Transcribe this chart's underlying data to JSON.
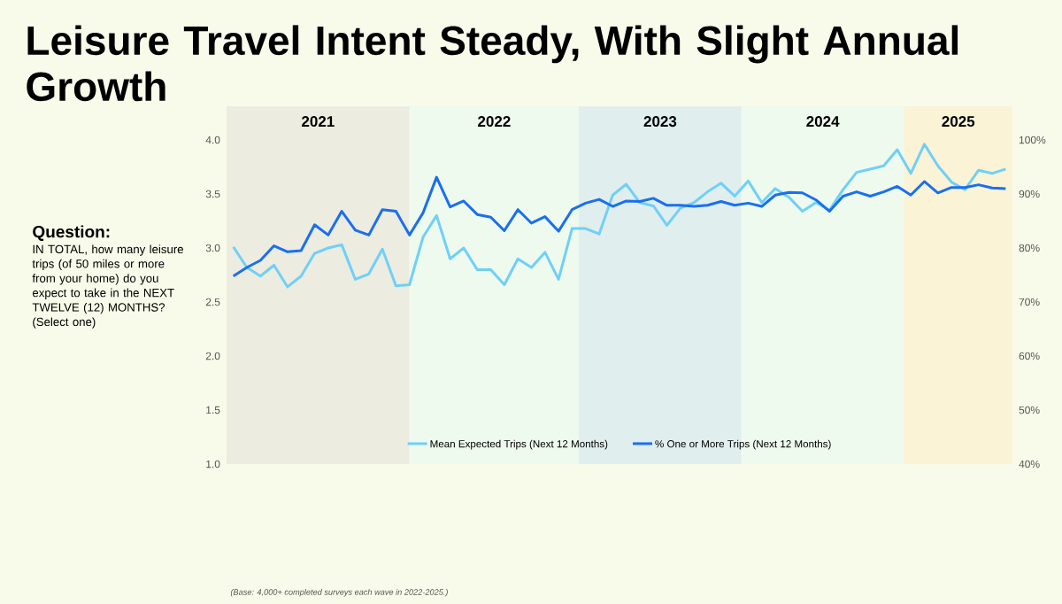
{
  "chart_data": {
    "type": "line",
    "title": "Leisure Travel Intent Steady, With Slight Annual Growth",
    "annotations": [
      "Question:",
      "IN TOTAL, how many leisure trips (of 50 miles or more from your home) do you expect to take in the NEXT TWELVE (12) MONTHS? (Select one)",
      "(Base: 4,000+ completed surveys each wave in 2022-2025.)",
      "2021",
      "2022",
      "2023",
      "2024",
      "2025"
    ],
    "categories": [
      null,
      null,
      null,
      null,
      null,
      null,
      null,
      null,
      null,
      null,
      null,
      null,
      null,
      null,
      null,
      null,
      null,
      null,
      null,
      null,
      null,
      null,
      null,
      null,
      null,
      null,
      null,
      null,
      null,
      null,
      null,
      null,
      null,
      null,
      null,
      null,
      null,
      null,
      null,
      null,
      null,
      null,
      null,
      null,
      null,
      null,
      null,
      null,
      null,
      null,
      null,
      null,
      null,
      null,
      null,
      null,
      null,
      null
    ],
    "series": [
      {
        "name": "Mean Expected Trips (Next 12 Months)",
        "color": "#6fd0f8",
        "values": [
          3.01,
          2.82,
          2.74,
          2.84,
          2.64,
          2.74,
          2.95,
          3.0,
          3.03,
          2.71,
          2.76,
          2.99,
          2.65,
          2.66,
          3.1,
          3.3,
          2.9,
          3.0,
          2.8,
          2.8,
          2.66,
          2.9,
          2.82,
          2.96,
          2.71,
          3.18,
          3.18,
          3.13,
          3.49,
          3.59,
          3.42,
          3.39,
          3.21,
          3.37,
          3.42,
          3.52,
          3.6,
          3.48,
          3.62,
          3.42,
          3.55,
          3.47,
          3.34,
          3.42,
          3.35,
          3.54,
          3.7,
          3.73,
          3.76,
          3.91,
          3.69,
          3.96,
          3.76,
          3.61,
          3.54,
          3.72,
          3.69,
          3.73
        ]
      },
      {
        "name": "% One or More Trips (Next 12 Months)",
        "color": "#1a6ff0",
        "axis": "y2",
        "values": [
          74.8,
          76.4,
          77.7,
          80.4,
          79.3,
          79.5,
          84.3,
          82.4,
          86.8,
          83.3,
          82.4,
          87.1,
          86.8,
          82.4,
          86.5,
          93.1,
          87.6,
          88.7,
          86.2,
          85.7,
          83.2,
          87.1,
          84.6,
          85.8,
          83.1,
          87.1,
          88.3,
          89.0,
          87.7,
          88.7,
          88.6,
          89.2,
          87.9,
          87.9,
          87.7,
          87.9,
          88.6,
          87.9,
          88.3,
          87.7,
          89.8,
          90.3,
          90.2,
          88.9,
          86.8,
          89.6,
          90.4,
          89.6,
          90.4,
          91.4,
          89.8,
          92.3,
          90.2,
          91.2,
          91.2,
          91.7,
          91.1,
          91.0
        ]
      }
    ],
    "ylim": [
      1,
      4
    ],
    "yticks": [
      {
        "value": 1,
        "label": "1.0"
      },
      {
        "value": 1.5,
        "label": "1.5"
      },
      {
        "value": 2,
        "label": "2.0"
      },
      {
        "value": 2.5,
        "label": "2.5"
      },
      {
        "value": 3,
        "label": "3.0"
      },
      {
        "value": 3.5,
        "label": "3.5"
      },
      {
        "value": 4,
        "label": "4.0"
      }
    ],
    "y2lim": [
      40,
      100
    ],
    "y2ticks": [
      {
        "value": 40,
        "label": "40%"
      },
      {
        "value": 50,
        "label": "50%"
      },
      {
        "value": 60,
        "label": "60%"
      },
      {
        "value": 70,
        "label": "70%"
      },
      {
        "value": 80,
        "label": "80%"
      },
      {
        "value": 90,
        "label": "90%"
      },
      {
        "value": 100,
        "label": "100%"
      }
    ],
    "legend": "bottom"
  }
}
